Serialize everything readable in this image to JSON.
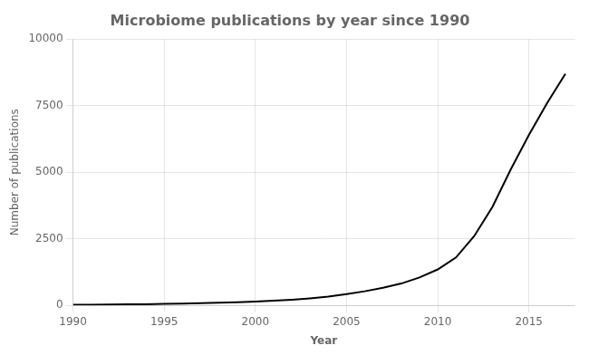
{
  "chart_data": {
    "type": "line",
    "title": "Microbiome publications by year since 1990",
    "xlabel": "Year",
    "ylabel": "Number of publications",
    "color": "#000000",
    "grid": true,
    "xlim": [
      1990,
      2017.5
    ],
    "ylim": [
      0,
      10000
    ],
    "xticks": [
      1990,
      1995,
      2000,
      2005,
      2010,
      2015
    ],
    "yticks": [
      0,
      2500,
      5000,
      7500,
      10000
    ],
    "x": [
      1990,
      1991,
      1992,
      1993,
      1994,
      1995,
      1996,
      1997,
      1998,
      1999,
      2000,
      2001,
      2002,
      2003,
      2004,
      2005,
      2006,
      2007,
      2008,
      2009,
      2010,
      2011,
      2012,
      2013,
      2014,
      2015,
      2016,
      2017
    ],
    "values": [
      20,
      25,
      30,
      38,
      45,
      55,
      65,
      80,
      100,
      120,
      145,
      175,
      215,
      265,
      330,
      420,
      530,
      660,
      820,
      1050,
      1350,
      1800,
      2600,
      3700,
      5100,
      6400,
      7600,
      8700
    ]
  }
}
